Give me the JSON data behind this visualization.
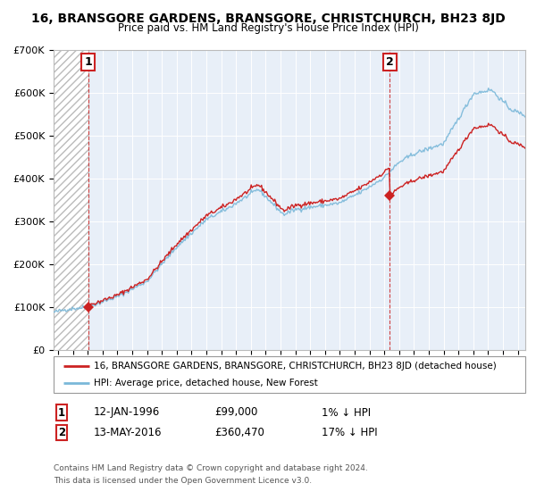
{
  "title": "16, BRANSGORE GARDENS, BRANSGORE, CHRISTCHURCH, BH23 8JD",
  "subtitle": "Price paid vs. HM Land Registry's House Price Index (HPI)",
  "legend_line1": "16, BRANSGORE GARDENS, BRANSGORE, CHRISTCHURCH, BH23 8JD (detached house)",
  "legend_line2": "HPI: Average price, detached house, New Forest",
  "annotation1_label": "1",
  "annotation1_date": "12-JAN-1996",
  "annotation1_price": "£99,000",
  "annotation1_hpi": "1% ↓ HPI",
  "annotation2_label": "2",
  "annotation2_date": "13-MAY-2016",
  "annotation2_price": "£360,470",
  "annotation2_hpi": "17% ↓ HPI",
  "footnote1": "Contains HM Land Registry data © Crown copyright and database right 2024.",
  "footnote2": "This data is licensed under the Open Government Licence v3.0.",
  "sale1_year": 1996.04,
  "sale1_price": 99000,
  "sale2_year": 2016.37,
  "sale2_price": 360470,
  "hpi_color": "#7ab8d9",
  "price_color": "#cc2222",
  "background_color": "#e8eff8",
  "ylim": [
    0,
    700000
  ],
  "xlim_start": 1993.7,
  "xlim_end": 2025.5
}
